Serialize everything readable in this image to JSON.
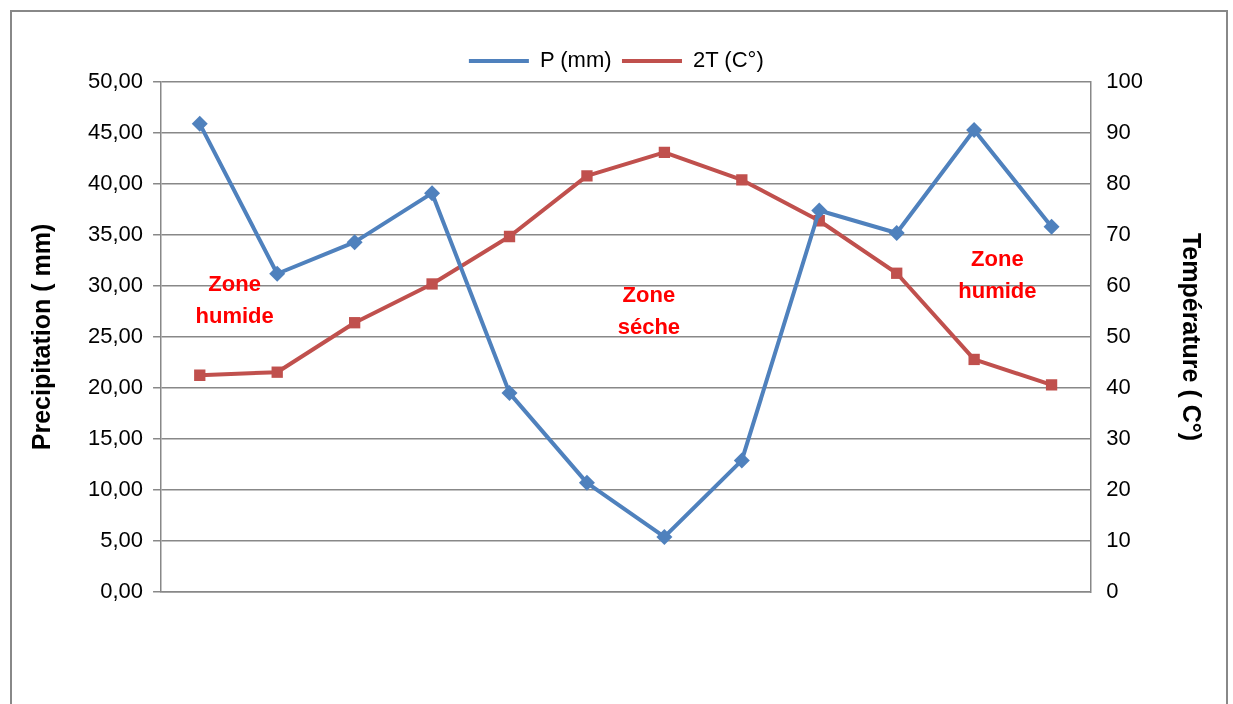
{
  "chart_data": {
    "type": "line",
    "categories": [
      null,
      null,
      null,
      null,
      null,
      null,
      null,
      null,
      null,
      null,
      null,
      null
    ],
    "series": [
      {
        "name": "P (mm)",
        "color": "#4f81bd",
        "marker": "diamond",
        "values": [
          45.9,
          31.2,
          34.3,
          39.1,
          19.5,
          10.7,
          5.4,
          12.9,
          37.4,
          35.2,
          45.3,
          35.8
        ]
      },
      {
        "name": "2T (C°)",
        "color": "#c0504d",
        "marker": "square",
        "axis": "y2",
        "values": [
          42.5,
          43.1,
          52.8,
          60.4,
          69.7,
          81.6,
          86.2,
          80.8,
          72.8,
          62.5,
          45.6,
          40.6
        ]
      }
    ],
    "ylabel": "Precipitation ( mm)",
    "y2label": "Température ( C°)",
    "ylim": [
      0,
      50
    ],
    "yticks": [
      {
        "value": 0,
        "label": "0,00"
      },
      {
        "value": 5,
        "label": "5,00"
      },
      {
        "value": 10,
        "label": "10,00"
      },
      {
        "value": 15,
        "label": "15,00"
      },
      {
        "value": 20,
        "label": "20,00"
      },
      {
        "value": 25,
        "label": "25,00"
      },
      {
        "value": 30,
        "label": "30,00"
      },
      {
        "value": 35,
        "label": "35,00"
      },
      {
        "value": 40,
        "label": "40,00"
      },
      {
        "value": 45,
        "label": "45,00"
      },
      {
        "value": 50,
        "label": "50,00"
      }
    ],
    "y2lim": [
      0,
      100
    ],
    "y2ticks": [
      0,
      10,
      20,
      30,
      40,
      50,
      60,
      70,
      80,
      90,
      100
    ],
    "annotations": [
      "Zone humide",
      "Zone séche",
      "Zone humide"
    ],
    "grid": "y",
    "legend": "top"
  }
}
